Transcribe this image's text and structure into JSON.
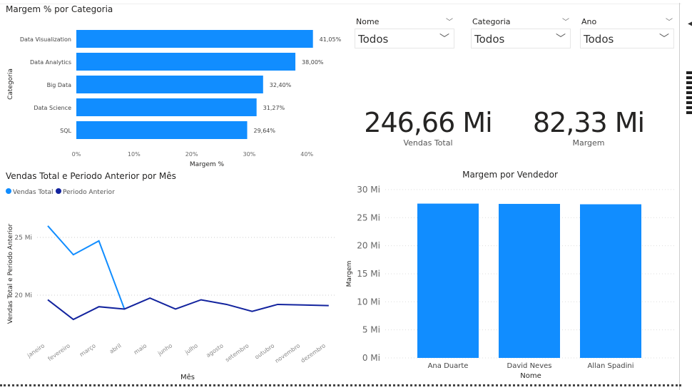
{
  "slicers": [
    {
      "label": "Nome",
      "value": "Todos"
    },
    {
      "label": "Categoria",
      "value": "Todos"
    },
    {
      "label": "Ano",
      "value": "Todos"
    }
  ],
  "kpis": [
    {
      "value": "246,66 Mi",
      "label": "Vendas Total"
    },
    {
      "value": "82,33 Mi",
      "label": "Margem"
    }
  ],
  "chart_data": [
    {
      "type": "bar",
      "orientation": "horizontal",
      "title": "Margem % por Categoria",
      "xlabel": "Margem %",
      "ylabel": "Categoria",
      "categories": [
        "Data Visualization",
        "Data Analytics",
        "Big Data",
        "Data Science",
        "SQL"
      ],
      "values": [
        41.05,
        38.0,
        32.4,
        31.27,
        29.64
      ],
      "data_labels": [
        "41,05%",
        "38,00%",
        "32,40%",
        "31,27%",
        "29,64%"
      ],
      "xticks": [
        "0%",
        "10%",
        "20%",
        "30%",
        "40%"
      ],
      "xlim": [
        0,
        42
      ],
      "color": "#118DFF"
    },
    {
      "type": "line",
      "title": "Vendas Total e Periodo Anterior por Mês",
      "xlabel": "Mês",
      "ylabel": "Vendas Total e Periodo Anterior",
      "categories": [
        "janeiro",
        "fevereiro",
        "março",
        "abril",
        "maio",
        "junho",
        "julho",
        "agosto",
        "setembro",
        "outubro",
        "novembro",
        "dezembro"
      ],
      "series": [
        {
          "name": "Vendas Total",
          "color": "#118DFF",
          "values": [
            26.0,
            23.5,
            24.7,
            18.8,
            null,
            null,
            null,
            null,
            null,
            null,
            null,
            null
          ]
        },
        {
          "name": "Periodo Anterior",
          "color": "#12239E",
          "values": [
            19.6,
            17.9,
            19.0,
            18.8,
            19.75,
            18.8,
            19.6,
            19.2,
            18.6,
            19.2,
            19.15,
            19.1
          ]
        }
      ],
      "yticks": [
        {
          "v": 20,
          "l": "20 Mi"
        },
        {
          "v": 25,
          "l": "25 Mi"
        }
      ],
      "ylim": [
        17.4,
        27.2
      ],
      "legend": "top-left"
    },
    {
      "type": "bar",
      "title": "Margem por Vendedor",
      "xlabel": "Nome",
      "ylabel": "Margem",
      "categories": [
        "Ana Duarte",
        "David Neves",
        "Allan Spadini"
      ],
      "values": [
        27.5,
        27.45,
        27.38
      ],
      "yticks": [
        {
          "v": 0,
          "l": "0 Mi"
        },
        {
          "v": 5,
          "l": "5 Mi"
        },
        {
          "v": 10,
          "l": "10 Mi"
        },
        {
          "v": 15,
          "l": "15 Mi"
        },
        {
          "v": 20,
          "l": "20 Mi"
        },
        {
          "v": 25,
          "l": "25 Mi"
        },
        {
          "v": 30,
          "l": "30 Mi"
        }
      ],
      "ylim": [
        0,
        30
      ],
      "color": "#118DFF"
    }
  ]
}
